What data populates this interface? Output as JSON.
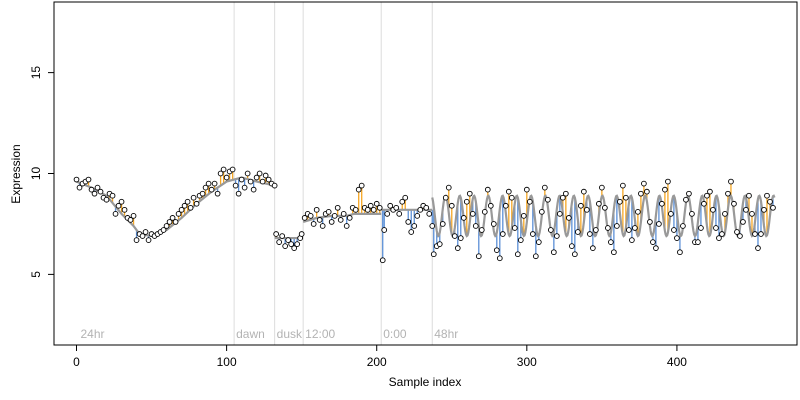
{
  "chart_data": {
    "type": "scatter",
    "title": "",
    "xlabel": "Sample index",
    "ylabel": "Expression",
    "xlim": [
      -15,
      480
    ],
    "ylim": [
      1.5,
      18.5
    ],
    "x_ticks": [
      0,
      100,
      200,
      300,
      400
    ],
    "y_ticks": [
      5,
      10,
      15
    ],
    "grid": false,
    "colors": {
      "fit_line": "#999999",
      "residual_positive": "#f5a623",
      "residual_negative": "#5b8fd6",
      "marker_edge": "#000000",
      "marker_fill": "#ffffff",
      "period_line": "#dcdcdc",
      "annotation_text": "#b3b3b3"
    },
    "period_markers": [
      {
        "x": 0,
        "label": "24hr",
        "line": false
      },
      {
        "x": 105,
        "label": "dawn",
        "line": true
      },
      {
        "x": 132,
        "label": "dusk",
        "line": true
      },
      {
        "x": 151,
        "label": "12:00",
        "line": true
      },
      {
        "x": 203,
        "label": "0:00",
        "line": true
      },
      {
        "x": 237,
        "label": "48hr",
        "line": true
      }
    ],
    "fit_segments": [
      {
        "name": "24hr",
        "type": "smooth",
        "knots": [
          [
            0,
            9.6
          ],
          [
            10,
            9.3
          ],
          [
            20,
            8.9
          ],
          [
            30,
            8.0
          ],
          [
            38,
            7.4
          ],
          [
            42,
            7.0
          ],
          [
            50,
            6.9
          ],
          [
            60,
            7.2
          ],
          [
            70,
            7.8
          ],
          [
            80,
            8.5
          ],
          [
            90,
            9.1
          ],
          [
            100,
            9.6
          ],
          [
            110,
            9.8
          ],
          [
            120,
            9.6
          ],
          [
            132,
            9.4
          ]
        ]
      },
      {
        "name": "dawn",
        "type": "step",
        "knots": [
          [
            132,
            6.8
          ],
          [
            151,
            6.8
          ]
        ]
      },
      {
        "name": "dusk",
        "type": "smooth",
        "knots": [
          [
            151,
            7.6
          ],
          [
            160,
            7.8
          ],
          [
            170,
            7.9
          ],
          [
            180,
            7.9
          ],
          [
            185,
            8.0
          ],
          [
            203,
            8.0
          ]
        ]
      },
      {
        "name": "0:00",
        "type": "step",
        "knots": [
          [
            203,
            8.2
          ],
          [
            237,
            8.2
          ]
        ]
      },
      {
        "name": "48hr",
        "type": "oscillating",
        "x_start": 237,
        "x_end": 465,
        "mean": 7.9,
        "amplitude": 1.0,
        "period": 9.5,
        "phase": 2.0
      }
    ],
    "points": [
      [
        0,
        9.7
      ],
      [
        2,
        9.3
      ],
      [
        4,
        9.5
      ],
      [
        6,
        9.6
      ],
      [
        8,
        9.7
      ],
      [
        10,
        9.2
      ],
      [
        12,
        9.0
      ],
      [
        14,
        9.3
      ],
      [
        16,
        9.1
      ],
      [
        18,
        8.8
      ],
      [
        20,
        8.7
      ],
      [
        22,
        9.0
      ],
      [
        24,
        8.9
      ],
      [
        26,
        8.0
      ],
      [
        28,
        8.4
      ],
      [
        30,
        8.6
      ],
      [
        32,
        8.2
      ],
      [
        34,
        7.8
      ],
      [
        36,
        7.7
      ],
      [
        38,
        7.9
      ],
      [
        40,
        6.7
      ],
      [
        42,
        7.0
      ],
      [
        44,
        6.9
      ],
      [
        46,
        7.1
      ],
      [
        48,
        6.7
      ],
      [
        50,
        7.0
      ],
      [
        52,
        6.9
      ],
      [
        54,
        7.0
      ],
      [
        56,
        7.1
      ],
      [
        58,
        7.2
      ],
      [
        60,
        7.4
      ],
      [
        62,
        7.6
      ],
      [
        64,
        7.8
      ],
      [
        66,
        7.6
      ],
      [
        68,
        8.0
      ],
      [
        70,
        8.2
      ],
      [
        72,
        8.4
      ],
      [
        74,
        8.6
      ],
      [
        76,
        8.3
      ],
      [
        78,
        8.8
      ],
      [
        80,
        8.5
      ],
      [
        82,
        8.9
      ],
      [
        84,
        9.0
      ],
      [
        86,
        9.3
      ],
      [
        88,
        9.5
      ],
      [
        90,
        9.2
      ],
      [
        92,
        9.5
      ],
      [
        94,
        9.0
      ],
      [
        96,
        10.0
      ],
      [
        98,
        10.2
      ],
      [
        100,
        9.8
      ],
      [
        102,
        10.1
      ],
      [
        104,
        10.2
      ],
      [
        106,
        9.4
      ],
      [
        108,
        9.0
      ],
      [
        110,
        9.7
      ],
      [
        112,
        9.3
      ],
      [
        114,
        10.0
      ],
      [
        116,
        9.6
      ],
      [
        118,
        9.2
      ],
      [
        120,
        9.8
      ],
      [
        122,
        10.0
      ],
      [
        124,
        9.6
      ],
      [
        126,
        9.9
      ],
      [
        128,
        9.7
      ],
      [
        130,
        9.5
      ],
      [
        132,
        9.4
      ],
      [
        133,
        7.0
      ],
      [
        135,
        6.6
      ],
      [
        137,
        6.9
      ],
      [
        139,
        6.4
      ],
      [
        141,
        6.7
      ],
      [
        143,
        6.5
      ],
      [
        145,
        6.3
      ],
      [
        147,
        6.5
      ],
      [
        149,
        6.8
      ],
      [
        150,
        7.0
      ],
      [
        152,
        7.8
      ],
      [
        154,
        8.0
      ],
      [
        156,
        7.9
      ],
      [
        158,
        7.5
      ],
      [
        160,
        8.2
      ],
      [
        162,
        7.7
      ],
      [
        164,
        7.4
      ],
      [
        166,
        8.0
      ],
      [
        168,
        8.1
      ],
      [
        170,
        7.6
      ],
      [
        172,
        7.9
      ],
      [
        174,
        8.3
      ],
      [
        176,
        7.7
      ],
      [
        178,
        8.0
      ],
      [
        180,
        7.4
      ],
      [
        182,
        7.8
      ],
      [
        184,
        8.3
      ],
      [
        186,
        8.2
      ],
      [
        188,
        9.2
      ],
      [
        190,
        9.4
      ],
      [
        192,
        8.3
      ],
      [
        194,
        8.2
      ],
      [
        196,
        8.4
      ],
      [
        198,
        8.2
      ],
      [
        200,
        8.5
      ],
      [
        202,
        8.3
      ],
      [
        204,
        5.7
      ],
      [
        205,
        7.2
      ],
      [
        207,
        8.0
      ],
      [
        209,
        8.4
      ],
      [
        211,
        8.2
      ],
      [
        213,
        8.3
      ],
      [
        215,
        8.0
      ],
      [
        217,
        8.6
      ],
      [
        219,
        8.8
      ],
      [
        221,
        7.6
      ],
      [
        223,
        7.1
      ],
      [
        225,
        7.4
      ],
      [
        227,
        7.9
      ],
      [
        229,
        8.2
      ],
      [
        231,
        8.4
      ],
      [
        233,
        8.3
      ],
      [
        235,
        8.0
      ],
      [
        237,
        7.4
      ],
      [
        238,
        6.0
      ],
      [
        240,
        6.4
      ],
      [
        242,
        6.5
      ],
      [
        244,
        7.5
      ],
      [
        246,
        8.8
      ],
      [
        248,
        9.3
      ],
      [
        250,
        8.4
      ],
      [
        252,
        6.9
      ],
      [
        254,
        6.3
      ],
      [
        256,
        6.8
      ],
      [
        258,
        7.8
      ],
      [
        260,
        8.6
      ],
      [
        262,
        9.0
      ],
      [
        264,
        8.0
      ],
      [
        266,
        7.4
      ],
      [
        268,
        5.9
      ],
      [
        270,
        7.2
      ],
      [
        272,
        8.1
      ],
      [
        274,
        9.2
      ],
      [
        276,
        8.4
      ],
      [
        278,
        7.5
      ],
      [
        280,
        6.2
      ],
      [
        282,
        5.8
      ],
      [
        284,
        7.0
      ],
      [
        286,
        8.4
      ],
      [
        288,
        9.1
      ],
      [
        290,
        8.8
      ],
      [
        292,
        7.3
      ],
      [
        294,
        6.0
      ],
      [
        296,
        6.7
      ],
      [
        298,
        7.9
      ],
      [
        300,
        9.2
      ],
      [
        302,
        8.6
      ],
      [
        304,
        7.0
      ],
      [
        306,
        5.9
      ],
      [
        308,
        6.6
      ],
      [
        310,
        8.1
      ],
      [
        312,
        9.3
      ],
      [
        314,
        8.7
      ],
      [
        316,
        7.2
      ],
      [
        318,
        6.1
      ],
      [
        320,
        6.9
      ],
      [
        322,
        8.0
      ],
      [
        324,
        8.8
      ],
      [
        326,
        9.0
      ],
      [
        328,
        7.8
      ],
      [
        330,
        6.4
      ],
      [
        332,
        6.0
      ],
      [
        334,
        7.1
      ],
      [
        336,
        8.4
      ],
      [
        338,
        9.1
      ],
      [
        340,
        8.2
      ],
      [
        342,
        7.0
      ],
      [
        344,
        6.3
      ],
      [
        346,
        7.2
      ],
      [
        348,
        8.5
      ],
      [
        350,
        9.3
      ],
      [
        352,
        8.3
      ],
      [
        354,
        7.3
      ],
      [
        356,
        6.6
      ],
      [
        358,
        6.1
      ],
      [
        360,
        7.4
      ],
      [
        362,
        8.6
      ],
      [
        364,
        9.4
      ],
      [
        366,
        8.8
      ],
      [
        368,
        7.2
      ],
      [
        370,
        6.7
      ],
      [
        372,
        7.3
      ],
      [
        374,
        8.1
      ],
      [
        376,
        9.0
      ],
      [
        378,
        9.5
      ],
      [
        380,
        9.1
      ],
      [
        382,
        7.6
      ],
      [
        384,
        6.6
      ],
      [
        386,
        6.3
      ],
      [
        388,
        7.5
      ],
      [
        390,
        8.5
      ],
      [
        392,
        9.2
      ],
      [
        394,
        9.6
      ],
      [
        396,
        8.0
      ],
      [
        398,
        7.2
      ],
      [
        400,
        6.8
      ],
      [
        402,
        6.1
      ],
      [
        404,
        7.4
      ],
      [
        406,
        8.7
      ],
      [
        408,
        9.0
      ],
      [
        410,
        8.0
      ],
      [
        412,
        6.6
      ],
      [
        414,
        6.6
      ],
      [
        416,
        7.3
      ],
      [
        418,
        8.5
      ],
      [
        420,
        8.9
      ],
      [
        422,
        9.1
      ],
      [
        424,
        8.2
      ],
      [
        426,
        7.3
      ],
      [
        428,
        6.8
      ],
      [
        430,
        7.0
      ],
      [
        432,
        8.0
      ],
      [
        434,
        9.0
      ],
      [
        436,
        9.6
      ],
      [
        438,
        8.5
      ],
      [
        440,
        7.1
      ],
      [
        442,
        6.9
      ],
      [
        444,
        7.6
      ],
      [
        446,
        8.2
      ],
      [
        448,
        8.9
      ],
      [
        450,
        8.0
      ],
      [
        452,
        7.0
      ],
      [
        454,
        6.3
      ],
      [
        456,
        7.0
      ],
      [
        458,
        8.2
      ],
      [
        460,
        8.9
      ],
      [
        462,
        8.6
      ],
      [
        464,
        8.3
      ]
    ]
  }
}
